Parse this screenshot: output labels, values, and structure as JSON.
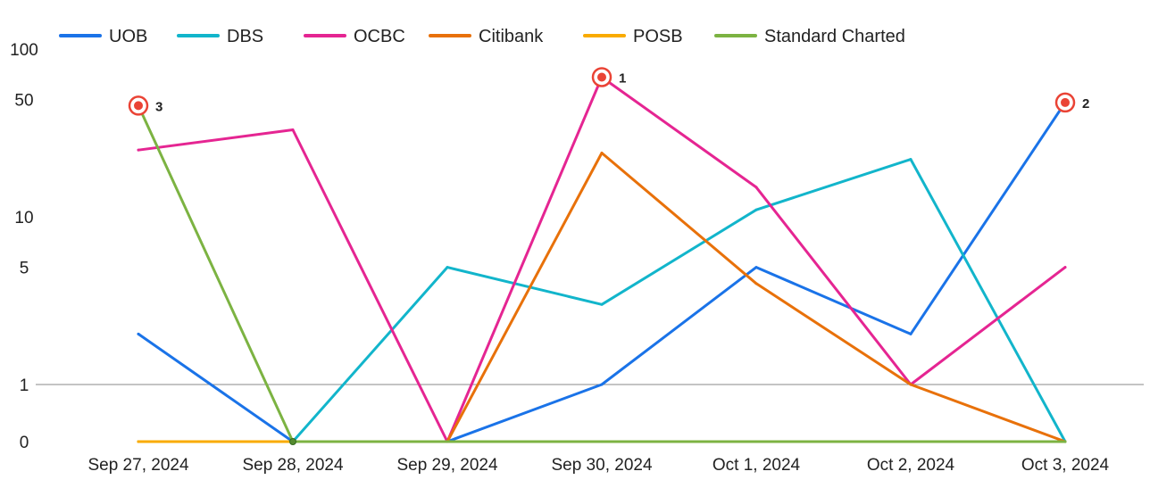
{
  "chart_data": {
    "type": "line",
    "title": "",
    "xlabel": "",
    "ylabel": "",
    "y_scale": "symlog",
    "ylim": [
      0,
      100
    ],
    "y_ticks": [
      {
        "value": 0,
        "label": "0"
      },
      {
        "value": 1,
        "label": "1"
      },
      {
        "value": 5,
        "label": "5"
      },
      {
        "value": 10,
        "label": "10"
      },
      {
        "value": 50,
        "label": "50"
      },
      {
        "value": 100,
        "label": "100"
      }
    ],
    "baseline_gridline": 1,
    "grid": false,
    "legend_position": "top-left",
    "categories": [
      "Sep 27, 2024",
      "Sep 28, 2024",
      "Sep 29, 2024",
      "Sep 30, 2024",
      "Oct 1, 2024",
      "Oct 2, 2024",
      "Oct 3, 2024"
    ],
    "series": [
      {
        "name": "UOB",
        "color": "#1a73e8",
        "values": [
          2,
          0,
          0,
          1,
          5,
          2,
          48
        ]
      },
      {
        "name": "DBS",
        "color": "#12b5cb",
        "values": [
          0,
          0,
          5,
          3,
          11,
          22,
          0
        ]
      },
      {
        "name": "OCBC",
        "color": "#e52592",
        "values": [
          25,
          33,
          0,
          68,
          15,
          1,
          5
        ]
      },
      {
        "name": "Citibank",
        "color": "#e8710a",
        "values": [
          0,
          0,
          0,
          24,
          4,
          1,
          0
        ]
      },
      {
        "name": "POSB",
        "color": "#f9ab00",
        "values": [
          0,
          0,
          0,
          0,
          0,
          0,
          0
        ]
      },
      {
        "name": "Standard Charted",
        "color": "#7cb342",
        "values": [
          46,
          0,
          0,
          0,
          0,
          0,
          0
        ]
      }
    ],
    "annotations": [
      {
        "label": "3",
        "series": "Standard Charted",
        "category": "Sep 27, 2024",
        "value": 46
      },
      {
        "label": "1",
        "series": "OCBC",
        "category": "Sep 30, 2024",
        "value": 68
      },
      {
        "label": "2",
        "series": "UOB",
        "category": "Oct 3, 2024",
        "value": 48
      }
    ],
    "annotation_color": "#ea4335",
    "baseline_color": "#888888"
  }
}
